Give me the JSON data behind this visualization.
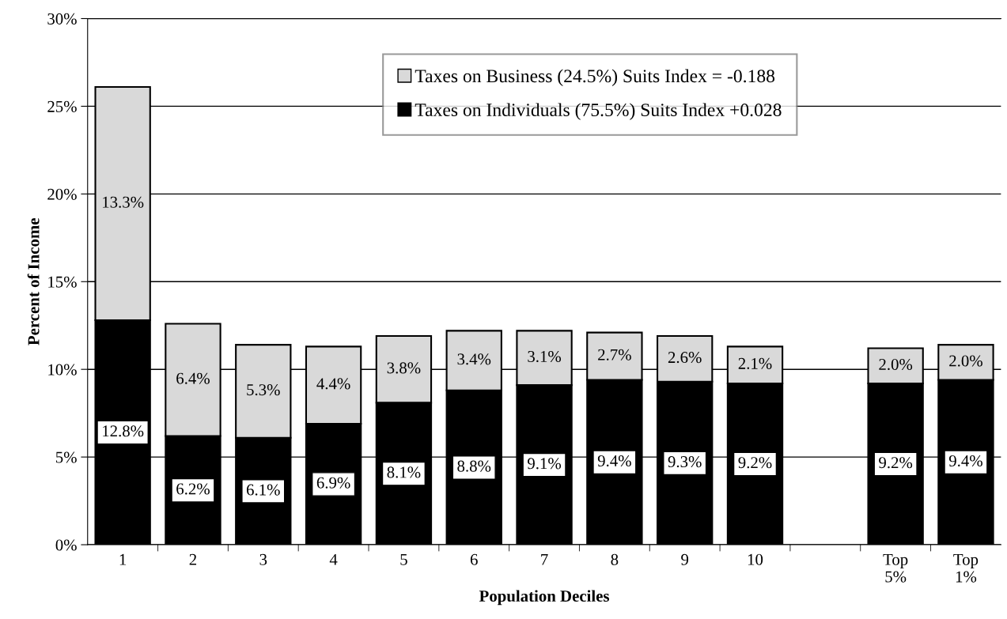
{
  "chart_data": {
    "type": "bar",
    "stacked": true,
    "xlabel": "Population Deciles",
    "ylabel": "Percent of Income",
    "categories": [
      "1",
      "2",
      "3",
      "4",
      "5",
      "6",
      "7",
      "8",
      "9",
      "10",
      null,
      "Top\n5%",
      "Top\n1%"
    ],
    "series": [
      {
        "name": "Taxes on Individuals (75.5%) Suits Index +0.028",
        "color": "#000000",
        "values": [
          12.8,
          6.2,
          6.1,
          6.9,
          8.1,
          8.8,
          9.1,
          9.4,
          9.3,
          9.2,
          null,
          9.2,
          9.4
        ],
        "value_labels": [
          "12.8%",
          "6.2%",
          "6.1%",
          "6.9%",
          "8.1%",
          "8.8%",
          "9.1%",
          "9.4%",
          "9.3%",
          "9.2%",
          null,
          "9.2%",
          "9.4%"
        ]
      },
      {
        "name": "Taxes on Business (24.5%) Suits Index = -0.188",
        "color": "#d9d9d9",
        "values": [
          13.3,
          6.4,
          5.3,
          4.4,
          3.8,
          3.4,
          3.1,
          2.7,
          2.6,
          2.1,
          null,
          2.0,
          2.0
        ],
        "value_labels": [
          "13.3%",
          "6.4%",
          "5.3%",
          "4.4%",
          "3.8%",
          "3.4%",
          "3.1%",
          "2.7%",
          "2.6%",
          "2.1%",
          null,
          "2.0%",
          "2.0%"
        ]
      }
    ],
    "ylim": [
      0,
      30
    ],
    "yticks": [
      {
        "value": 0,
        "label": "0%"
      },
      {
        "value": 5,
        "label": "5%"
      },
      {
        "value": 10,
        "label": "10%"
      },
      {
        "value": 15,
        "label": "15%"
      },
      {
        "value": 20,
        "label": "20%"
      },
      {
        "value": 25,
        "label": "25%"
      },
      {
        "value": 30,
        "label": "30%"
      }
    ],
    "grid": "y",
    "legend": "top"
  }
}
